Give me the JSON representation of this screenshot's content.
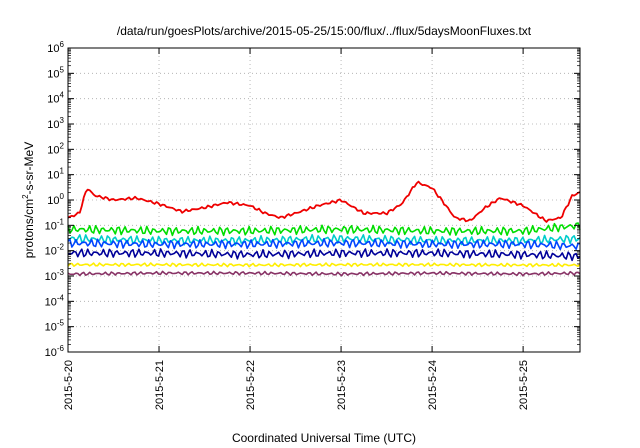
{
  "chart_data": {
    "type": "line",
    "title": "/data/run/goesPlots/archive/2015-05-25/15:00/flux/../flux/5daysMoonFluxes.txt",
    "xlabel": "Coordinated Universal Time (UTC)",
    "ylabel": "protons/cm2-s-sr-MeV",
    "ylabel_parts": {
      "base": "protons/cm",
      "sup": "2",
      "rest": "-s-sr-MeV"
    },
    "yscale": "log",
    "ylim": [
      1e-06,
      1000000.0
    ],
    "y_ticks": [
      {
        "base": "10",
        "exp": "-6"
      },
      {
        "base": "10",
        "exp": "-5"
      },
      {
        "base": "10",
        "exp": "-4"
      },
      {
        "base": "10",
        "exp": "-3"
      },
      {
        "base": "10",
        "exp": "-2"
      },
      {
        "base": "10",
        "exp": "-1"
      },
      {
        "base": "10",
        "exp": "0"
      },
      {
        "base": "10",
        "exp": "1"
      },
      {
        "base": "10",
        "exp": "2"
      },
      {
        "base": "10",
        "exp": "3"
      },
      {
        "base": "10",
        "exp": "4"
      },
      {
        "base": "10",
        "exp": "5"
      },
      {
        "base": "10",
        "exp": "6"
      }
    ],
    "x_ticks": [
      "2015-5-20",
      "2015-5-21",
      "2015-5-22",
      "2015-5-23",
      "2015-5-24",
      "2015-5-25"
    ],
    "xlim": [
      "2015-05-20 00:00",
      "2015-05-25 15:00"
    ],
    "grid": true,
    "series": [
      {
        "color": "#ee0000",
        "x": [
          "2015-05-20 00:00",
          "2015-05-20 03:00",
          "2015-05-20 05:00",
          "2015-05-20 07:00",
          "2015-05-20 12:00",
          "2015-05-20 18:00",
          "2015-05-21 00:00",
          "2015-05-21 06:00",
          "2015-05-21 12:00",
          "2015-05-21 18:00",
          "2015-05-22 00:00",
          "2015-05-22 04:00",
          "2015-05-22 08:00",
          "2015-05-22 12:00",
          "2015-05-22 18:00",
          "2015-05-23 00:00",
          "2015-05-23 06:00",
          "2015-05-23 12:00",
          "2015-05-23 16:00",
          "2015-05-23 20:00",
          "2015-05-24 00:00",
          "2015-05-24 03:00",
          "2015-05-24 06:00",
          "2015-05-24 10:00",
          "2015-05-24 14:00",
          "2015-05-24 18:00",
          "2015-05-25 00:00",
          "2015-05-25 06:00",
          "2015-05-25 10:00",
          "2015-05-25 13:00",
          "2015-05-25 15:00"
        ],
        "values": [
          0.2,
          0.3,
          3,
          1.5,
          1.0,
          1.2,
          0.7,
          0.35,
          0.5,
          0.8,
          0.6,
          0.3,
          0.2,
          0.3,
          0.6,
          1.0,
          0.3,
          0.3,
          0.7,
          5,
          3,
          0.8,
          0.2,
          0.15,
          0.5,
          1.2,
          0.6,
          0.15,
          0.2,
          1.5,
          2
        ]
      },
      {
        "color": "#00dd00",
        "x": [
          "2015-05-20 00:00",
          "2015-05-21 00:00",
          "2015-05-22 00:00",
          "2015-05-23 00:00",
          "2015-05-24 00:00",
          "2015-05-25 00:00",
          "2015-05-25 15:00"
        ],
        "values": [
          0.07,
          0.06,
          0.06,
          0.07,
          0.06,
          0.06,
          0.1
        ]
      },
      {
        "color": "#00cccc",
        "x": [
          "2015-05-20 00:00",
          "2015-05-21 00:00",
          "2015-05-22 00:00",
          "2015-05-23 00:00",
          "2015-05-24 00:00",
          "2015-05-25 00:00",
          "2015-05-25 15:00"
        ],
        "values": [
          0.03,
          0.025,
          0.025,
          0.03,
          0.025,
          0.025,
          0.03
        ]
      },
      {
        "color": "#0044ff",
        "x": [
          "2015-05-20 00:00",
          "2015-05-21 00:00",
          "2015-05-22 00:00",
          "2015-05-23 00:00",
          "2015-05-24 00:00",
          "2015-05-25 00:00",
          "2015-05-25 15:00"
        ],
        "values": [
          0.02,
          0.018,
          0.018,
          0.02,
          0.018,
          0.018,
          0.015
        ]
      },
      {
        "color": "#000099",
        "x": [
          "2015-05-20 00:00",
          "2015-05-21 00:00",
          "2015-05-22 00:00",
          "2015-05-23 00:00",
          "2015-05-24 00:00",
          "2015-05-25 00:00",
          "2015-05-25 15:00"
        ],
        "values": [
          0.008,
          0.008,
          0.007,
          0.008,
          0.008,
          0.007,
          0.006
        ]
      },
      {
        "color": "#ffee00",
        "x": [
          "2015-05-20 00:00",
          "2015-05-21 00:00",
          "2015-05-22 00:00",
          "2015-05-23 00:00",
          "2015-05-24 00:00",
          "2015-05-25 00:00",
          "2015-05-25 15:00"
        ],
        "values": [
          0.0028,
          0.0028,
          0.0027,
          0.0028,
          0.0028,
          0.0027,
          0.0027
        ]
      },
      {
        "color": "#883366",
        "x": [
          "2015-05-20 00:00",
          "2015-05-21 00:00",
          "2015-05-22 00:00",
          "2015-05-23 00:00",
          "2015-05-24 00:00",
          "2015-05-25 00:00",
          "2015-05-25 15:00"
        ],
        "values": [
          0.0012,
          0.0013,
          0.0013,
          0.0012,
          0.0013,
          0.0012,
          0.0013
        ]
      }
    ]
  }
}
